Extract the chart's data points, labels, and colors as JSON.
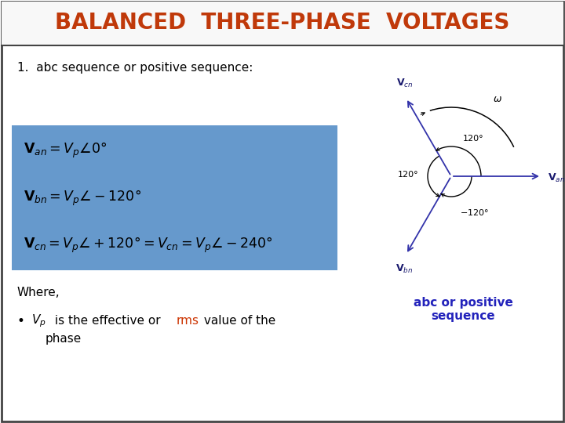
{
  "title": "BALANCED  THREE-PHASE  VOLTAGES",
  "title_color": "#C0390A",
  "title_fontsize": 20,
  "box_bg": "#6699CC",
  "where_text": "Where,",
  "phasor_label_color": "#1a1a6e",
  "phasor_line_color": "#3333aa",
  "phasor_caption": "abc or positive\nsequence",
  "phasor_caption_color": "#2222BB",
  "background_color": "#ffffff",
  "border_color": "#444444",
  "rms_color": "#CC3300",
  "subtitle": "1.  abc sequence or positive sequence:",
  "subtitle_fontsize": 11
}
